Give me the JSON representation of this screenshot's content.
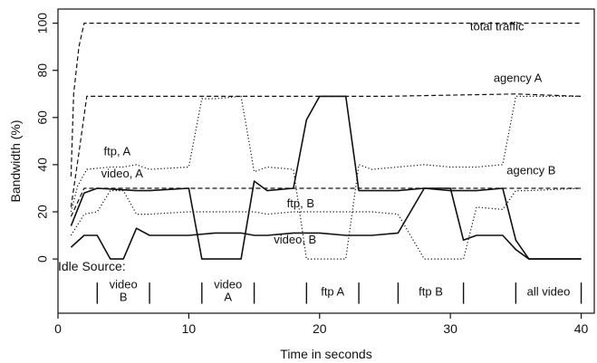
{
  "chart_data": {
    "type": "line",
    "title": "",
    "xlabel": "Time in seconds",
    "ylabel": "Bandwidth (%)",
    "xlim": [
      0,
      41
    ],
    "ylim": [
      -23,
      106
    ],
    "xticks": [
      0,
      10,
      20,
      30,
      40
    ],
    "yticks": [
      0,
      20,
      40,
      60,
      80,
      100
    ],
    "grid": false,
    "series": [
      {
        "key": "total",
        "style": "dashed",
        "x": [
          1,
          1.2,
          1.6,
          2.0,
          40
        ],
        "y": [
          35,
          70,
          90,
          100,
          100
        ]
      },
      {
        "key": "agencyA",
        "style": "dashed",
        "x": [
          1,
          1.6,
          2.2,
          10,
          25,
          35,
          40
        ],
        "y": [
          22,
          45,
          69,
          69,
          69,
          70,
          69
        ]
      },
      {
        "key": "agencyB",
        "style": "dashed",
        "x": [
          1,
          2,
          10,
          25,
          30,
          35,
          40
        ],
        "y": [
          18,
          30,
          30,
          30,
          30,
          30,
          30
        ]
      },
      {
        "key": "ftpA",
        "style": "dotted",
        "x": [
          1,
          1.5,
          2.2,
          4,
          5,
          6,
          7,
          10,
          11,
          12,
          14,
          15,
          16,
          18,
          19,
          20,
          22,
          23,
          24,
          26,
          28,
          30,
          32,
          34,
          35,
          36,
          38,
          40
        ],
        "y": [
          20,
          31,
          38,
          39,
          39,
          40,
          38,
          39,
          68,
          68,
          69,
          37,
          39,
          38,
          0,
          0,
          0,
          40,
          38,
          39,
          40,
          39,
          39,
          40,
          69,
          69,
          69,
          69
        ]
      },
      {
        "key": "ftpB",
        "style": "dotted",
        "x": [
          1,
          2,
          3,
          4,
          5,
          6,
          7,
          10,
          11,
          12,
          14,
          15,
          16,
          18,
          20,
          22,
          24,
          26,
          28,
          30,
          31,
          32,
          34,
          35,
          36,
          40
        ],
        "y": [
          10,
          19,
          20,
          29,
          29,
          19,
          19,
          20,
          20,
          20,
          20,
          20,
          19,
          20,
          20,
          20,
          20,
          19,
          0,
          0,
          0,
          22,
          21,
          29,
          29,
          30
        ]
      },
      {
        "key": "videoA",
        "style": "solid",
        "x": [
          1,
          2,
          3,
          6,
          7,
          10,
          11,
          12,
          14,
          15,
          16,
          18,
          19,
          20,
          22,
          23,
          24,
          26,
          28,
          30,
          31,
          32,
          34,
          35,
          36,
          40
        ],
        "y": [
          14,
          28,
          30,
          29,
          29,
          30,
          0,
          0,
          0,
          33,
          29,
          30,
          59,
          69,
          69,
          29,
          29,
          29,
          30,
          29,
          29,
          29,
          30,
          8,
          0,
          0
        ]
      },
      {
        "key": "videoB",
        "style": "solid",
        "x": [
          1,
          2,
          3,
          4,
          5,
          6,
          7,
          10,
          12,
          14,
          15,
          16,
          18,
          20,
          22,
          24,
          26,
          28,
          30,
          31,
          32,
          34,
          35,
          36,
          40
        ],
        "y": [
          5,
          10,
          10,
          0,
          0,
          13,
          10,
          10,
          11,
          11,
          10,
          10,
          11,
          11,
          10,
          10,
          11,
          30,
          30,
          8,
          10,
          10,
          4,
          0,
          0
        ]
      }
    ],
    "annotations": [
      {
        "text": "total traffic",
        "x": 31.5,
        "y": 97
      },
      {
        "text": "agency A",
        "x": 33.3,
        "y": 75
      },
      {
        "text": "agency B",
        "x": 34.3,
        "y": 36
      },
      {
        "text": "ftp, A",
        "x": 3.5,
        "y": 44
      },
      {
        "text": "video, A",
        "x": 3.3,
        "y": 34.5
      },
      {
        "text": "ftp, B",
        "x": 17.5,
        "y": 22
      },
      {
        "text": "video, B",
        "x": 16.5,
        "y": 6.5
      }
    ],
    "idle_source": {
      "title": "Idle Source:",
      "periods": [
        {
          "start": 3,
          "end": 7,
          "lines": [
            "video",
            "B"
          ]
        },
        {
          "start": 11,
          "end": 15,
          "lines": [
            "video",
            "A"
          ]
        },
        {
          "start": 19,
          "end": 23,
          "lines": [
            "ftp A"
          ]
        },
        {
          "start": 26,
          "end": 31,
          "lines": [
            "ftp B"
          ]
        },
        {
          "start": 35,
          "end": 40,
          "lines": [
            "all video"
          ]
        }
      ]
    }
  }
}
